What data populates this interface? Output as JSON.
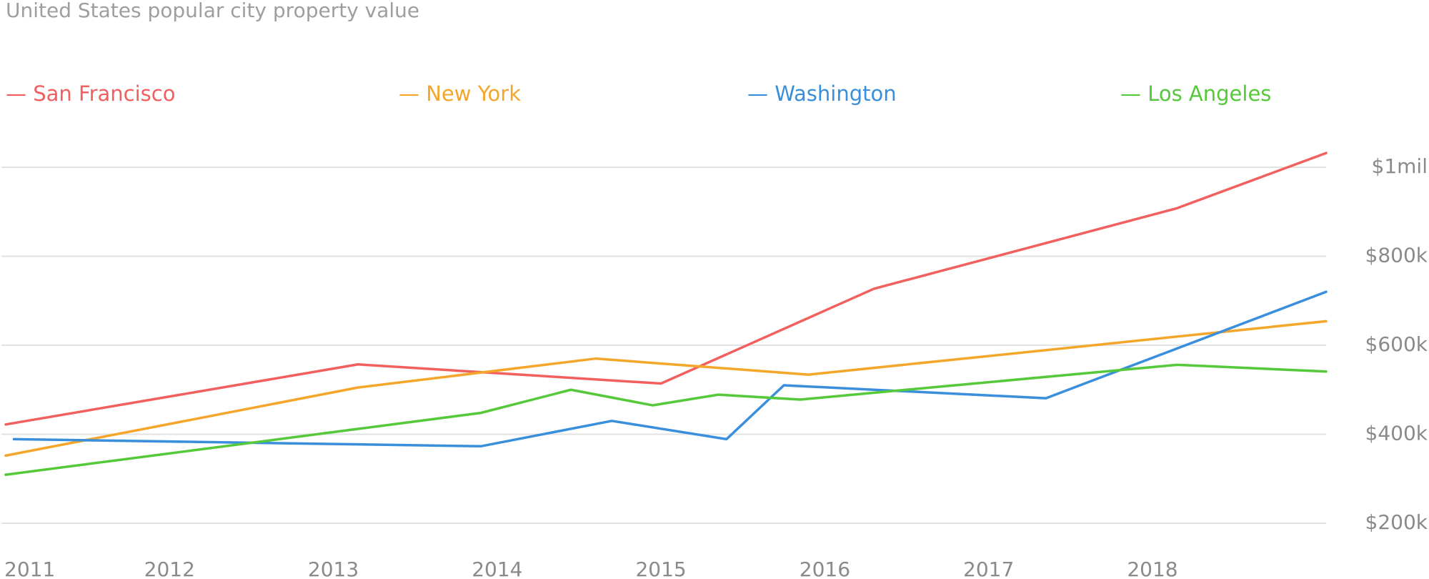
{
  "chart_data": {
    "type": "line",
    "title": "United States popular city property value",
    "xlabel": "",
    "ylabel": "",
    "xlim": [
      2011,
      2019.06
    ],
    "ylim": [
      200000,
      1000000
    ],
    "x_ticks": [
      {
        "value": 2011.0,
        "label": "2011"
      },
      {
        "value": 2012.0,
        "label": "2012"
      },
      {
        "value": 2013.0,
        "label": "2013"
      },
      {
        "value": 2014.0,
        "label": "2014"
      },
      {
        "value": 2015.0,
        "label": "2015"
      },
      {
        "value": 2016.0,
        "label": "2016"
      },
      {
        "value": 2017.0,
        "label": "2017"
      },
      {
        "value": 2018.0,
        "label": "2018"
      }
    ],
    "y_ticks": [
      {
        "value": 1000000,
        "label": "$1mil"
      },
      {
        "value": 800000,
        "label": "$800k"
      },
      {
        "value": 600000,
        "label": "$600k"
      },
      {
        "value": 400000,
        "label": "$400k"
      },
      {
        "value": 200000,
        "label": "$200k"
      }
    ],
    "grid": true,
    "legend_position": "top",
    "series": [
      {
        "name": "San Francisco",
        "color": "#f25f5f",
        "points": [
          {
            "x": 2011.0,
            "y": 422000
          },
          {
            "x": 2013.15,
            "y": 557000
          },
          {
            "x": 2015.0,
            "y": 514000
          },
          {
            "x": 2016.3,
            "y": 727000
          },
          {
            "x": 2018.15,
            "y": 908000
          },
          {
            "x": 2019.06,
            "y": 1032000
          }
        ]
      },
      {
        "name": "New York",
        "color": "#f4a62a",
        "points": [
          {
            "x": 2011.0,
            "y": 352000
          },
          {
            "x": 2013.15,
            "y": 505000
          },
          {
            "x": 2014.6,
            "y": 570000
          },
          {
            "x": 2015.9,
            "y": 534000
          },
          {
            "x": 2019.06,
            "y": 654000
          }
        ]
      },
      {
        "name": "Washington",
        "color": "#3a8fdc",
        "points": [
          {
            "x": 2011.05,
            "y": 389000
          },
          {
            "x": 2013.9,
            "y": 373000
          },
          {
            "x": 2014.7,
            "y": 430000
          },
          {
            "x": 2015.4,
            "y": 389000
          },
          {
            "x": 2015.75,
            "y": 510000
          },
          {
            "x": 2017.35,
            "y": 481000
          },
          {
            "x": 2019.06,
            "y": 720000
          }
        ]
      },
      {
        "name": "Los Angeles",
        "color": "#55c93a",
        "points": [
          {
            "x": 2011.0,
            "y": 309000
          },
          {
            "x": 2013.9,
            "y": 448000
          },
          {
            "x": 2014.45,
            "y": 500000
          },
          {
            "x": 2014.95,
            "y": 465000
          },
          {
            "x": 2015.35,
            "y": 489000
          },
          {
            "x": 2015.85,
            "y": 478000
          },
          {
            "x": 2018.15,
            "y": 556000
          },
          {
            "x": 2019.06,
            "y": 541000
          }
        ]
      }
    ]
  }
}
